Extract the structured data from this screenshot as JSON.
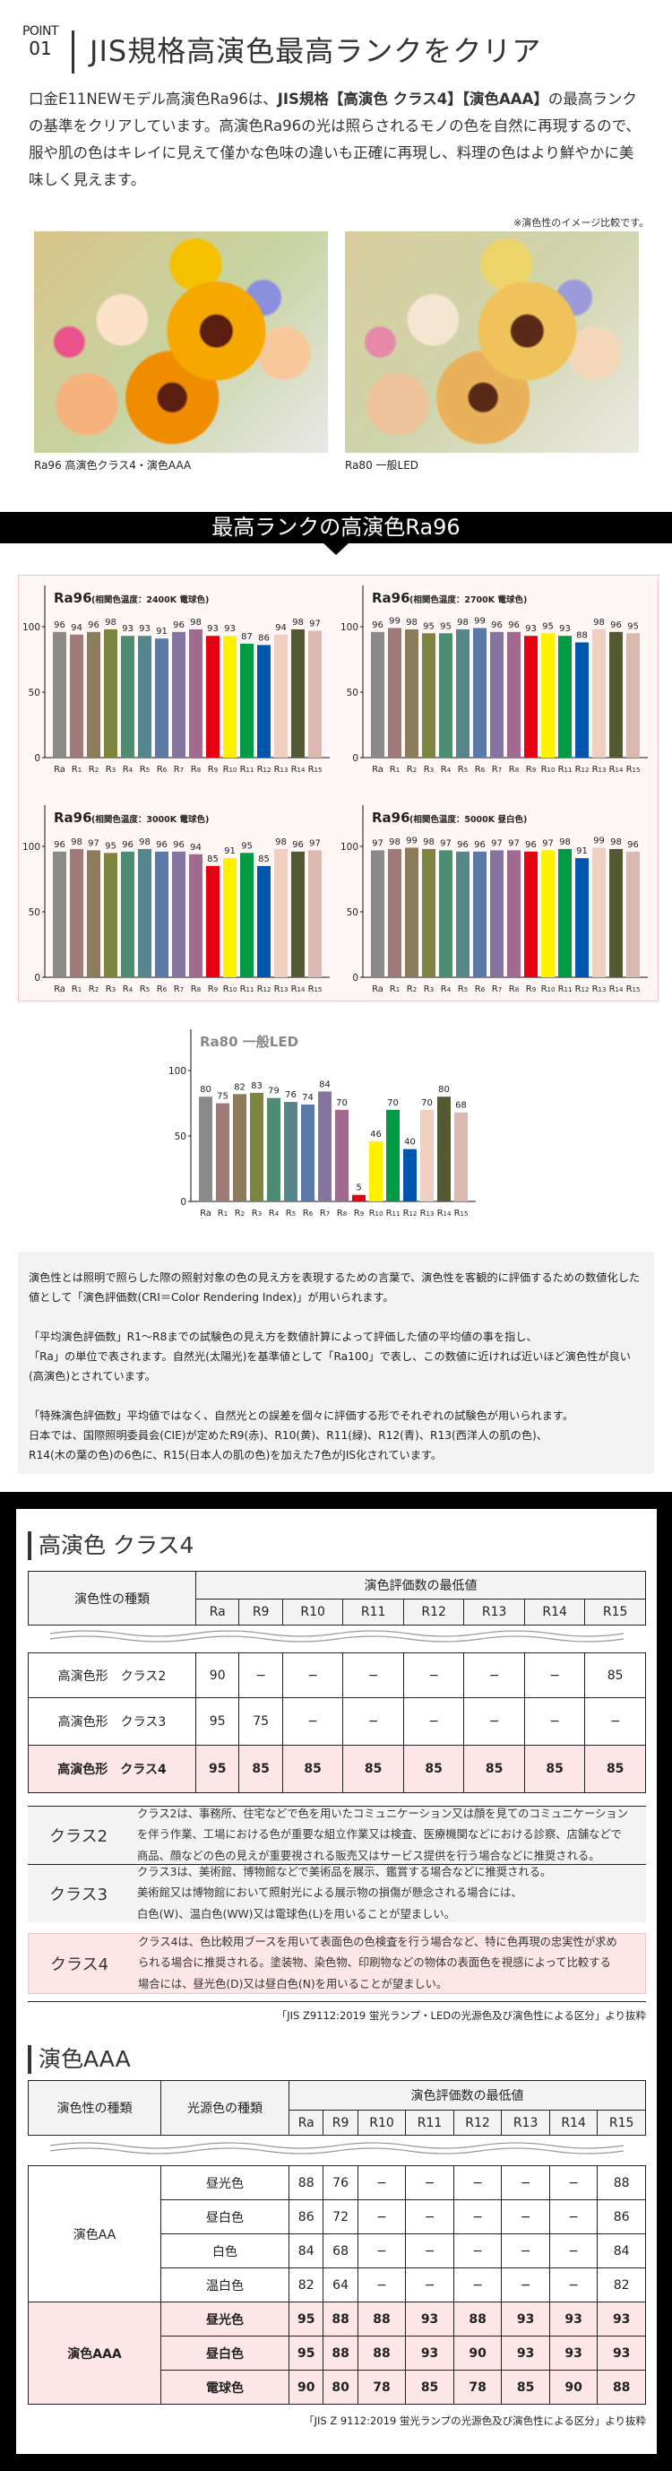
{
  "header": {
    "point_label": "POINT",
    "point_number": "01",
    "title": "JIS規格高演色最高ランクをクリア"
  },
  "intro": {
    "part1": "口金E11NEWモデル高演色Ra96は、",
    "bold": "JIS規格【高演色 クラス4】【演色AAA】",
    "part2": "の最高ランクの基準をクリアしています。高演色Ra96の光は照らされるモノの色を自然に再現するので、服や肌の色はキレイに見えて僅かな色味の違いも正確に再現し、料理の色はより鮮やかに美味しく見えます。"
  },
  "comparison": {
    "note": "※演色性のイメージ比較です。",
    "left_caption": "Ra96 高演色クラス4・演色AAA",
    "right_caption": "Ra80 一般LED"
  },
  "banner": {
    "title": "最高ランクの高演色Ra96"
  },
  "colors": {
    "bars": [
      "#8a8a8a",
      "#a07a78",
      "#8c7c5c",
      "#7d8640",
      "#4f8c74",
      "#57858c",
      "#5b79a6",
      "#8674a0",
      "#a06b8e",
      "#e60012",
      "#fff100",
      "#009944",
      "#0056ae",
      "#f0cfc0",
      "#535a33",
      "#dbb8b0"
    ],
    "accent_pink": "#fde6e7"
  },
  "chart_data": [
    {
      "type": "bar",
      "title": "Ra96",
      "subtitle": "(相関色温度：2400K 電球色)",
      "categories": [
        "Ra",
        "R1",
        "R2",
        "R3",
        "R4",
        "R5",
        "R6",
        "R7",
        "R8",
        "R9",
        "R10",
        "R11",
        "R12",
        "R13",
        "R14",
        "R15"
      ],
      "values": [
        96,
        94,
        96,
        98,
        93,
        93,
        91,
        96,
        98,
        93,
        93,
        87,
        86,
        94,
        98,
        97
      ],
      "yticks": [
        0,
        50,
        100
      ],
      "ylim": [
        0,
        100
      ]
    },
    {
      "type": "bar",
      "title": "Ra96",
      "subtitle": "(相関色温度：2700K 電球色)",
      "categories": [
        "Ra",
        "R1",
        "R2",
        "R3",
        "R4",
        "R5",
        "R6",
        "R7",
        "R8",
        "R9",
        "R10",
        "R11",
        "R12",
        "R13",
        "R14",
        "R15"
      ],
      "values": [
        96,
        99,
        98,
        95,
        95,
        98,
        99,
        96,
        96,
        93,
        95,
        93,
        88,
        98,
        96,
        95
      ],
      "yticks": [
        0,
        50,
        100
      ],
      "ylim": [
        0,
        100
      ]
    },
    {
      "type": "bar",
      "title": "Ra96",
      "subtitle": "(相関色温度：3000K 電球色)",
      "categories": [
        "Ra",
        "R1",
        "R2",
        "R3",
        "R4",
        "R5",
        "R6",
        "R7",
        "R8",
        "R9",
        "R10",
        "R11",
        "R12",
        "R13",
        "R14",
        "R15"
      ],
      "values": [
        96,
        98,
        97,
        95,
        96,
        98,
        96,
        96,
        94,
        85,
        91,
        95,
        85,
        98,
        96,
        97
      ],
      "yticks": [
        0,
        50,
        100
      ],
      "ylim": [
        0,
        100
      ]
    },
    {
      "type": "bar",
      "title": "Ra96",
      "subtitle": "(相関色温度：5000K 昼白色)",
      "categories": [
        "Ra",
        "R1",
        "R2",
        "R3",
        "R4",
        "R5",
        "R6",
        "R7",
        "R8",
        "R9",
        "R10",
        "R11",
        "R12",
        "R13",
        "R14",
        "R15"
      ],
      "values": [
        97,
        98,
        99,
        98,
        97,
        96,
        96,
        97,
        97,
        96,
        97,
        98,
        91,
        99,
        98,
        96
      ],
      "yticks": [
        0,
        50,
        100
      ],
      "ylim": [
        0,
        100
      ]
    },
    {
      "type": "bar",
      "title": "Ra80 一般LED",
      "subtitle": "",
      "categories": [
        "Ra",
        "R1",
        "R2",
        "R3",
        "R4",
        "R5",
        "R6",
        "R7",
        "R8",
        "R9",
        "R10",
        "R11",
        "R12",
        "R13",
        "R14",
        "R15"
      ],
      "values": [
        80,
        75,
        82,
        83,
        79,
        76,
        74,
        84,
        70,
        5,
        46,
        70,
        40,
        70,
        80,
        68
      ],
      "yticks": [
        0,
        50,
        100
      ],
      "ylim": [
        0,
        100
      ]
    }
  ],
  "info": {
    "paragraphs": [
      "演色性とは照明で照らした際の照射対象の色の見え方を表現するための言葉で、演色性を客観的に評価するための数値化した値として「演色評価数(CRI＝Color Rendering Index)」が用いられます。",
      "「平均演色評価数」R1〜R8までの試験色の見え方を数値計算によって評価した値の平均値の事を指し、\n「Ra」の単位で表されます。自然光(太陽光)を基準値として「Ra100」で表し、この数値に近ければ近いほど演色性が良い(高演色)とされています。",
      "「特殊演色評価数」平均値ではなく、自然光との誤差を個々に評価する形でそれぞれの試験色が用いられます。\n日本では、国際照明委員会(CIE)が定めたR9(赤)、R10(黄)、R11(緑)、R12(青)、R13(西洋人の肌の色)、\nR14(木の葉の色)の6色に、R15(日本人の肌の色)を加えた7色がJIS化されています。"
    ]
  },
  "class_table": {
    "heading": "高演色 クラス4",
    "col_type": "演色性の種類",
    "col_group": "演色評価数の最低値",
    "columns": [
      "Ra",
      "R9",
      "R10",
      "R11",
      "R12",
      "R13",
      "R14",
      "R15"
    ],
    "rows": [
      {
        "label": "高演色形　クラス2",
        "values": [
          "90",
          "−",
          "−",
          "−",
          "−",
          "−",
          "−",
          "85"
        ],
        "highlight": false
      },
      {
        "label": "高演色形　クラス3",
        "values": [
          "95",
          "75",
          "−",
          "−",
          "−",
          "−",
          "−",
          "−"
        ],
        "highlight": false
      },
      {
        "label": "高演色形　クラス4",
        "values": [
          "95",
          "85",
          "85",
          "85",
          "85",
          "85",
          "85",
          "85"
        ],
        "highlight": true
      }
    ],
    "descriptions": [
      {
        "label": "クラス2",
        "text": "クラス2は、事務所、住宅などで色を用いたコミュニケーション又は顔を見てのコミュニケーション\nを伴う作業、工場における色が重要な組立作業又は検査、医療機関などにおける診察、店舗などで\n商品、顔などの色の見えが重要視される販売又はサービス提供を行う場合などに推奨される。"
      },
      {
        "label": "クラス3",
        "text": "クラス3は、美術館、博物館などで美術品を展示、鑑賞する場合などに推奨される。\n美術館又は博物館において照射光による展示物の損傷が懸念される場合には、\n白色(W)、温白色(WW)又は電球色(L)を用いることが望ましい。"
      },
      {
        "label": "クラス4",
        "text": "クラス4は、色比較用ブースを用いて表面色の色検査を行う場合など、特に色再現の忠実性が求め\nられる場合に推奨される。塗装物、染色物、印刷物などの物体の表面色を視感によって比較する\n場合には、昼光色(D)又は昼白色(N)を用いることが望ましい。"
      }
    ],
    "source": "「JIS Z9112:2019 蛍光ランプ・LEDの光源色及び演色性による区分」より抜粋"
  },
  "aaa_table": {
    "heading": "演色AAA",
    "col_type": "演色性の種類",
    "col_light": "光源色の種類",
    "col_group": "演色評価数の最低値",
    "columns": [
      "Ra",
      "R9",
      "R10",
      "R11",
      "R12",
      "R13",
      "R14",
      "R15"
    ],
    "groups": [
      {
        "label": "演色AA",
        "highlight": false,
        "rows": [
          {
            "light": "昼光色",
            "values": [
              "88",
              "76",
              "−",
              "−",
              "−",
              "−",
              "−",
              "88"
            ]
          },
          {
            "light": "昼白色",
            "values": [
              "86",
              "72",
              "−",
              "−",
              "−",
              "−",
              "−",
              "86"
            ]
          },
          {
            "light": "白色",
            "values": [
              "84",
              "68",
              "−",
              "−",
              "−",
              "−",
              "−",
              "84"
            ]
          },
          {
            "light": "温白色",
            "values": [
              "82",
              "64",
              "−",
              "−",
              "−",
              "−",
              "−",
              "82"
            ]
          }
        ]
      },
      {
        "label": "演色AAA",
        "highlight": true,
        "rows": [
          {
            "light": "昼光色",
            "values": [
              "95",
              "88",
              "88",
              "93",
              "88",
              "93",
              "93",
              "93"
            ]
          },
          {
            "light": "昼白色",
            "values": [
              "95",
              "88",
              "88",
              "93",
              "90",
              "93",
              "93",
              "93"
            ]
          },
          {
            "light": "電球色",
            "values": [
              "90",
              "80",
              "78",
              "85",
              "78",
              "85",
              "90",
              "88"
            ]
          }
        ]
      }
    ],
    "source": "「JIS Z 9112:2019 蛍光ランプの光源色及び演色性による区分」より抜粋"
  }
}
